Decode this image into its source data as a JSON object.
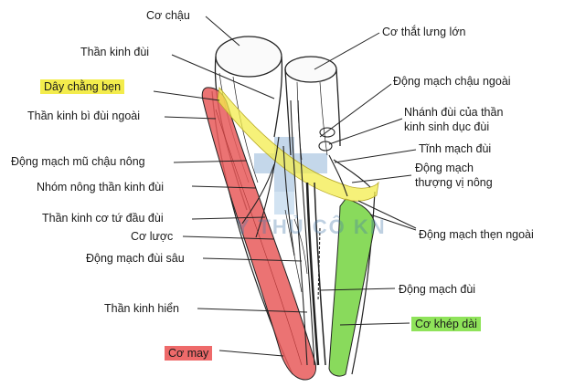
{
  "labels": {
    "co_chau": "Cơ chậu",
    "than_kinh_dui": "Thần kinh đùi",
    "day_chang_ben": "Dây chằng bẹn",
    "than_kinh_bi_dui_ngoai": "Thần kinh bì đùi ngoài",
    "dong_mach_mu_chau_nong": "Động mạch mũ chậu nông",
    "nhom_nong_than_kinh_dui": "Nhóm nông thần kinh đùi",
    "than_kinh_co_tu_dau_dui": "Thần kinh cơ tứ đầu đùi",
    "co_luoc": "Cơ lược",
    "dong_mach_dui_sau": "Động mạch đùi sâu",
    "than_kinh_hien": "Thần kinh hiển",
    "co_may": "Cơ may",
    "co_that_lung_lon": "Cơ thắt lưng lớn",
    "dong_mach_chau_ngoai": "Động mạch chậu ngoài",
    "nhanh_dui_line1": "Nhánh đùi của thần",
    "nhanh_dui_line2": "kinh sinh dục đùi",
    "tinh_mach_dui": "Tĩnh mạch đùi",
    "dong_mach_thuong_vi_line1": "Động mạch",
    "dong_mach_thuong_vi_line2": "thượng vị nông",
    "dong_mach_then_ngoai": "Động mạch thẹn ngoài",
    "dong_mach_dui": "Động mạch đùi",
    "co_khep_dai": "Cơ khép dài"
  },
  "watermark": "Y THỦ CÔ KN",
  "colors": {
    "sartorius": "#e85a5a",
    "adductor_longus": "#7cd64a",
    "inguinal_ligament": "#f3ec4c",
    "watermark_blue": "#5a8fc4",
    "line": "#222222"
  }
}
